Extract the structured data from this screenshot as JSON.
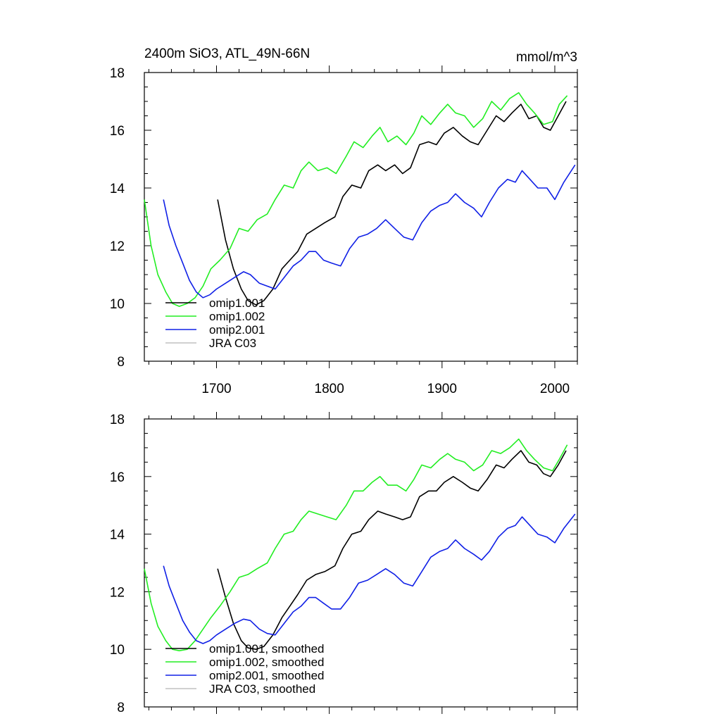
{
  "figure": {
    "title": "2400m SiO3, ATL_49N-66N",
    "units": "mmol/m^3"
  },
  "chart_data": [
    {
      "type": "line",
      "panel": "top",
      "xlim": [
        1636,
        2020
      ],
      "ylim": [
        8,
        18
      ],
      "xticks": [
        1700,
        1800,
        1900,
        2000
      ],
      "yticks": [
        8,
        10,
        12,
        14,
        16,
        18
      ],
      "legend_position": "bottom-left",
      "series": [
        {
          "name": "omip1.001",
          "color": "#000000",
          "x": [
            1701,
            1708,
            1715,
            1722,
            1728,
            1735,
            1742,
            1750,
            1758,
            1765,
            1772,
            1780,
            1788,
            1796,
            1805,
            1812,
            1820,
            1828,
            1835,
            1843,
            1850,
            1858,
            1865,
            1872,
            1880,
            1888,
            1895,
            1902,
            1910,
            1918,
            1925,
            1932,
            1940,
            1948,
            1955,
            1962,
            1970,
            1977,
            1984,
            1990,
            1996,
            2003,
            2010
          ],
          "y": [
            13.6,
            12.2,
            11.2,
            10.5,
            10.1,
            9.95,
            10.1,
            10.5,
            11.2,
            11.5,
            11.8,
            12.4,
            12.6,
            12.8,
            13.0,
            13.7,
            14.1,
            14.0,
            14.6,
            14.8,
            14.6,
            14.8,
            14.5,
            14.7,
            15.5,
            15.6,
            15.5,
            15.9,
            16.1,
            15.8,
            15.6,
            15.5,
            16.0,
            16.5,
            16.3,
            16.6,
            16.9,
            16.4,
            16.5,
            16.1,
            16.0,
            16.5,
            17.0
          ]
        },
        {
          "name": "omip1.002",
          "color": "#22ee22",
          "x": [
            1636,
            1642,
            1648,
            1655,
            1661,
            1667,
            1674,
            1681,
            1688,
            1695,
            1703,
            1712,
            1720,
            1728,
            1736,
            1745,
            1752,
            1760,
            1768,
            1775,
            1782,
            1790,
            1798,
            1806,
            1815,
            1822,
            1830,
            1838,
            1845,
            1852,
            1860,
            1868,
            1875,
            1882,
            1890,
            1898,
            1905,
            1912,
            1920,
            1928,
            1936,
            1944,
            1952,
            1960,
            1968,
            1975,
            1982,
            1990,
            1998,
            2004,
            2011
          ],
          "y": [
            13.6,
            12.0,
            11.0,
            10.4,
            10.0,
            9.9,
            10.0,
            10.2,
            10.6,
            11.2,
            11.5,
            11.9,
            12.6,
            12.5,
            12.9,
            13.1,
            13.6,
            14.1,
            14.0,
            14.6,
            14.9,
            14.6,
            14.7,
            14.5,
            15.1,
            15.6,
            15.4,
            15.8,
            16.1,
            15.6,
            15.8,
            15.5,
            15.9,
            16.5,
            16.2,
            16.6,
            16.9,
            16.6,
            16.5,
            16.1,
            16.4,
            17.0,
            16.7,
            17.1,
            17.3,
            16.9,
            16.6,
            16.2,
            16.3,
            16.9,
            17.2
          ]
        },
        {
          "name": "omip2.001",
          "color": "#1020e6",
          "x": [
            1653,
            1658,
            1664,
            1670,
            1676,
            1682,
            1688,
            1694,
            1700,
            1708,
            1716,
            1724,
            1730,
            1738,
            1745,
            1752,
            1760,
            1768,
            1775,
            1782,
            1788,
            1795,
            1802,
            1810,
            1818,
            1826,
            1834,
            1842,
            1850,
            1858,
            1866,
            1874,
            1882,
            1890,
            1898,
            1905,
            1912,
            1920,
            1928,
            1935,
            1942,
            1950,
            1958,
            1965,
            1971,
            1978,
            1985,
            1993,
            2000,
            2008,
            2018
          ],
          "y": [
            13.6,
            12.7,
            12.0,
            11.4,
            10.8,
            10.4,
            10.2,
            10.3,
            10.5,
            10.7,
            10.9,
            11.1,
            11.0,
            10.7,
            10.6,
            10.5,
            10.9,
            11.3,
            11.5,
            11.8,
            11.8,
            11.5,
            11.4,
            11.3,
            11.9,
            12.3,
            12.4,
            12.6,
            12.9,
            12.6,
            12.3,
            12.2,
            12.8,
            13.2,
            13.4,
            13.5,
            13.8,
            13.5,
            13.3,
            13.0,
            13.5,
            14.0,
            14.3,
            14.2,
            14.6,
            14.3,
            14.0,
            14.0,
            13.6,
            14.2,
            14.8
          ]
        },
        {
          "name": "JRA C03",
          "color": "#c0c0c0",
          "x": [],
          "y": []
        }
      ]
    },
    {
      "type": "line",
      "panel": "bottom",
      "xlim": [
        1636,
        2020
      ],
      "ylim": [
        8,
        18
      ],
      "yticks": [
        8,
        10,
        12,
        14,
        16,
        18
      ],
      "legend_position": "bottom-left",
      "series": [
        {
          "name": "omip1.001, smoothed",
          "color": "#000000",
          "x": [
            1701,
            1708,
            1715,
            1722,
            1728,
            1735,
            1742,
            1750,
            1758,
            1765,
            1772,
            1780,
            1788,
            1796,
            1805,
            1812,
            1820,
            1828,
            1835,
            1843,
            1850,
            1858,
            1865,
            1872,
            1880,
            1888,
            1895,
            1902,
            1910,
            1918,
            1925,
            1932,
            1940,
            1948,
            1955,
            1962,
            1970,
            1977,
            1984,
            1990,
            1996,
            2003,
            2010
          ],
          "y": [
            12.8,
            11.8,
            10.9,
            10.3,
            10.05,
            10.0,
            10.1,
            10.5,
            11.1,
            11.5,
            11.9,
            12.4,
            12.6,
            12.7,
            12.9,
            13.5,
            14.0,
            14.1,
            14.5,
            14.8,
            14.7,
            14.6,
            14.5,
            14.6,
            15.3,
            15.5,
            15.5,
            15.8,
            16.0,
            15.8,
            15.6,
            15.5,
            15.9,
            16.4,
            16.3,
            16.6,
            16.9,
            16.5,
            16.4,
            16.1,
            16.0,
            16.4,
            16.9
          ]
        },
        {
          "name": "omip1.002, smoothed",
          "color": "#22ee22",
          "x": [
            1636,
            1642,
            1648,
            1655,
            1661,
            1667,
            1674,
            1681,
            1688,
            1695,
            1703,
            1712,
            1720,
            1728,
            1736,
            1745,
            1752,
            1760,
            1768,
            1775,
            1782,
            1790,
            1798,
            1806,
            1815,
            1822,
            1830,
            1838,
            1845,
            1852,
            1860,
            1868,
            1875,
            1882,
            1890,
            1898,
            1905,
            1912,
            1920,
            1928,
            1936,
            1944,
            1952,
            1960,
            1968,
            1975,
            1982,
            1990,
            1998,
            2004,
            2011
          ],
          "y": [
            12.8,
            11.6,
            10.8,
            10.3,
            10.0,
            9.95,
            10.0,
            10.3,
            10.7,
            11.1,
            11.5,
            12.0,
            12.5,
            12.6,
            12.8,
            13.0,
            13.5,
            14.0,
            14.1,
            14.5,
            14.8,
            14.7,
            14.6,
            14.5,
            15.0,
            15.5,
            15.5,
            15.8,
            16.0,
            15.7,
            15.7,
            15.5,
            15.9,
            16.4,
            16.3,
            16.6,
            16.8,
            16.6,
            16.5,
            16.2,
            16.4,
            16.9,
            16.8,
            17.0,
            17.3,
            16.9,
            16.6,
            16.3,
            16.2,
            16.6,
            17.1
          ]
        },
        {
          "name": "omip2.001, smoothed",
          "color": "#1020e6",
          "x": [
            1653,
            1658,
            1664,
            1670,
            1676,
            1682,
            1688,
            1694,
            1700,
            1708,
            1716,
            1724,
            1730,
            1738,
            1745,
            1752,
            1760,
            1768,
            1775,
            1782,
            1788,
            1795,
            1802,
            1810,
            1818,
            1826,
            1834,
            1842,
            1850,
            1858,
            1866,
            1874,
            1882,
            1890,
            1898,
            1905,
            1912,
            1920,
            1928,
            1935,
            1942,
            1950,
            1958,
            1965,
            1971,
            1978,
            1985,
            1993,
            2000,
            2008,
            2018
          ],
          "y": [
            12.9,
            12.2,
            11.6,
            11.0,
            10.6,
            10.3,
            10.2,
            10.3,
            10.5,
            10.7,
            10.9,
            11.05,
            11.0,
            10.7,
            10.55,
            10.5,
            10.9,
            11.3,
            11.5,
            11.8,
            11.8,
            11.6,
            11.4,
            11.4,
            11.8,
            12.3,
            12.4,
            12.6,
            12.8,
            12.6,
            12.3,
            12.2,
            12.7,
            13.2,
            13.4,
            13.5,
            13.8,
            13.5,
            13.3,
            13.1,
            13.4,
            13.9,
            14.2,
            14.3,
            14.6,
            14.3,
            14.0,
            13.9,
            13.7,
            14.2,
            14.7
          ]
        },
        {
          "name": "JRA C03, smoothed",
          "color": "#c0c0c0",
          "x": [],
          "y": []
        }
      ]
    }
  ]
}
